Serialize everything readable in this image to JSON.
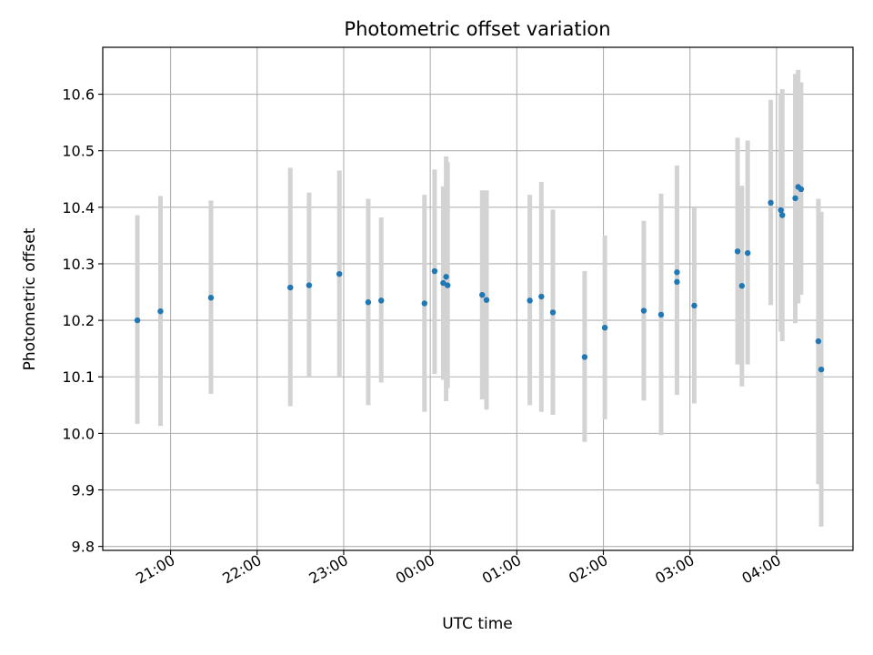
{
  "chart_data": {
    "type": "scatter",
    "title": "Photometric offset variation",
    "xlabel": "UTC time",
    "ylabel": "Photometric offset",
    "x_axis_kind": "time",
    "xlim": [
      "20:13",
      "04:53"
    ],
    "ylim": [
      9.793,
      10.683
    ],
    "grid": true,
    "x_ticks": [
      "21:00",
      "22:00",
      "23:00",
      "00:00",
      "01:00",
      "02:00",
      "03:00",
      "04:00"
    ],
    "y_ticks": [
      "9.8",
      "9.9",
      "10.0",
      "10.1",
      "10.2",
      "10.3",
      "10.4",
      "10.5",
      "10.6"
    ],
    "colors": {
      "point": "#1f77b4",
      "errorbar": "#d3d3d3",
      "grid": "#b0b0b0"
    },
    "points": [
      {
        "x": "20:37",
        "y": 10.2,
        "err_low": 10.017,
        "err_high": 10.386
      },
      {
        "x": "20:53",
        "y": 10.216,
        "err_low": 10.013,
        "err_high": 10.42
      },
      {
        "x": "21:28",
        "y": 10.24,
        "err_low": 10.07,
        "err_high": 10.412
      },
      {
        "x": "22:23",
        "y": 10.258,
        "err_low": 10.048,
        "err_high": 10.47
      },
      {
        "x": "22:36",
        "y": 10.262,
        "err_low": 10.1,
        "err_high": 10.426
      },
      {
        "x": "22:57",
        "y": 10.282,
        "err_low": 10.1,
        "err_high": 10.465
      },
      {
        "x": "23:17",
        "y": 10.232,
        "err_low": 10.05,
        "err_high": 10.415
      },
      {
        "x": "23:26",
        "y": 10.235,
        "err_low": 10.09,
        "err_high": 10.382
      },
      {
        "x": "23:56",
        "y": 10.23,
        "err_low": 10.038,
        "err_high": 10.422
      },
      {
        "x": "00:03",
        "y": 10.287,
        "err_low": 10.105,
        "err_high": 10.467
      },
      {
        "x": "00:09",
        "y": 10.266,
        "err_low": 10.095,
        "err_high": 10.437
      },
      {
        "x": "00:11",
        "y": 10.277,
        "err_low": 10.057,
        "err_high": 10.49
      },
      {
        "x": "00:12",
        "y": 10.262,
        "err_low": 10.08,
        "err_high": 10.48
      },
      {
        "x": "00:36",
        "y": 10.245,
        "err_low": 10.06,
        "err_high": 10.43
      },
      {
        "x": "00:39",
        "y": 10.236,
        "err_low": 10.042,
        "err_high": 10.43
      },
      {
        "x": "01:09",
        "y": 10.235,
        "err_low": 10.05,
        "err_high": 10.422
      },
      {
        "x": "01:17",
        "y": 10.242,
        "err_low": 10.038,
        "err_high": 10.445
      },
      {
        "x": "01:25",
        "y": 10.214,
        "err_low": 10.033,
        "err_high": 10.396
      },
      {
        "x": "01:47",
        "y": 10.135,
        "err_low": 9.985,
        "err_high": 10.287
      },
      {
        "x": "02:01",
        "y": 10.187,
        "err_low": 10.025,
        "err_high": 10.35
      },
      {
        "x": "02:28",
        "y": 10.217,
        "err_low": 10.058,
        "err_high": 10.376
      },
      {
        "x": "02:40",
        "y": 10.21,
        "err_low": 9.997,
        "err_high": 10.424
      },
      {
        "x": "02:51",
        "y": 10.285,
        "err_low": 10.095,
        "err_high": 10.474
      },
      {
        "x": "02:51",
        "y": 10.268,
        "err_low": 10.068,
        "err_high": 10.468
      },
      {
        "x": "03:03",
        "y": 10.226,
        "err_low": 10.053,
        "err_high": 10.4
      },
      {
        "x": "03:33",
        "y": 10.322,
        "err_low": 10.122,
        "err_high": 10.523
      },
      {
        "x": "03:36",
        "y": 10.261,
        "err_low": 10.083,
        "err_high": 10.438
      },
      {
        "x": "03:40",
        "y": 10.319,
        "err_low": 10.122,
        "err_high": 10.518
      },
      {
        "x": "03:56",
        "y": 10.408,
        "err_low": 10.227,
        "err_high": 10.59
      },
      {
        "x": "04:03",
        "y": 10.395,
        "err_low": 10.18,
        "err_high": 10.6
      },
      {
        "x": "04:04",
        "y": 10.386,
        "err_low": 10.163,
        "err_high": 10.609
      },
      {
        "x": "04:13",
        "y": 10.416,
        "err_low": 10.195,
        "err_high": 10.636
      },
      {
        "x": "04:15",
        "y": 10.436,
        "err_low": 10.23,
        "err_high": 10.643
      },
      {
        "x": "04:17",
        "y": 10.432,
        "err_low": 10.245,
        "err_high": 10.621
      },
      {
        "x": "04:29",
        "y": 10.163,
        "err_low": 9.91,
        "err_high": 10.415
      },
      {
        "x": "04:31",
        "y": 10.113,
        "err_low": 9.835,
        "err_high": 10.392
      }
    ]
  }
}
